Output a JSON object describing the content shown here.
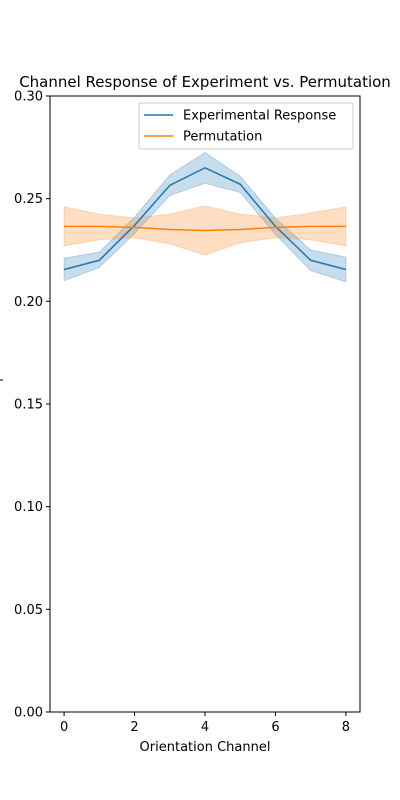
{
  "chart_data": {
    "type": "line",
    "title": "Channel Response of Experiment vs. Permutation",
    "xlabel": "Orientation Channel",
    "ylabel": "",
    "xlim": [
      -0.4,
      8.4
    ],
    "ylim": [
      0.0,
      0.3
    ],
    "xticks": [
      0,
      2,
      4,
      6,
      8
    ],
    "yticks": [
      0.0,
      0.05,
      0.1,
      0.15,
      0.2,
      0.25,
      0.3
    ],
    "ytick_labels": [
      "0.00",
      "0.05",
      "0.10",
      "0.15",
      "0.20",
      "0.25",
      "0.30"
    ],
    "grid": false,
    "legend_position": "top-right",
    "x": [
      0,
      1,
      2,
      3,
      4,
      5,
      6,
      7,
      8
    ],
    "series": [
      {
        "name": "Experimental Response",
        "color": "#1f77b4",
        "values": [
          0.2155,
          0.22,
          0.237,
          0.2565,
          0.265,
          0.257,
          0.2365,
          0.22,
          0.2155
        ],
        "ci_lower": [
          0.21,
          0.2165,
          0.233,
          0.2515,
          0.2575,
          0.253,
          0.2325,
          0.215,
          0.2095
        ],
        "ci_upper": [
          0.221,
          0.224,
          0.241,
          0.2615,
          0.2725,
          0.261,
          0.2405,
          0.225,
          0.2215
        ]
      },
      {
        "name": "Permutation",
        "color": "#ff7f0e",
        "values": [
          0.2365,
          0.2365,
          0.236,
          0.235,
          0.2345,
          0.235,
          0.236,
          0.2365,
          0.2365
        ],
        "ci_lower": [
          0.227,
          0.23,
          0.231,
          0.228,
          0.2225,
          0.2285,
          0.231,
          0.23,
          0.227
        ],
        "ci_upper": [
          0.246,
          0.2425,
          0.2405,
          0.2425,
          0.2465,
          0.2425,
          0.2405,
          0.243,
          0.246
        ]
      }
    ]
  }
}
